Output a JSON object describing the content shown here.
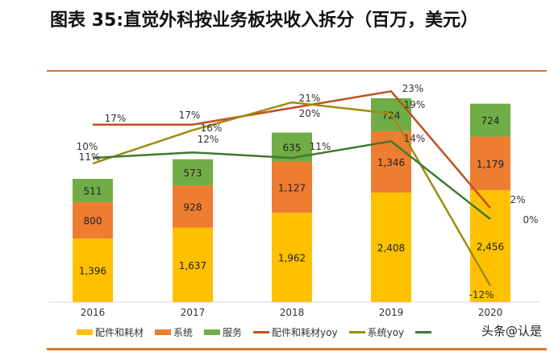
{
  "title": "图表 35:直觉外科按业务板块收入拆分（百万，美元）",
  "watermark": "头条@认是",
  "chart_data": {
    "type": "bar",
    "stacked": true,
    "categories": [
      "2016",
      "2017",
      "2018",
      "2019",
      "2020"
    ],
    "series": [
      {
        "name": "配件和耗材",
        "color": "#ffc000",
        "values": [
          1396,
          1637,
          1962,
          2408,
          2456
        ],
        "labels": [
          "1,396",
          "1,637",
          "1,962",
          "2,408",
          "2,456"
        ]
      },
      {
        "name": "系统",
        "color": "#ed7d31",
        "values": [
          800,
          928,
          1127,
          1346,
          1179
        ],
        "labels": [
          "800",
          "928",
          "1,127",
          "1,346",
          "1,179"
        ]
      },
      {
        "name": "服务",
        "color": "#70ad47",
        "values": [
          511,
          573,
          635,
          724,
          724
        ],
        "labels": [
          "511",
          "573",
          "635",
          "724",
          "724"
        ]
      }
    ],
    "line_series": [
      {
        "name": "配件和耗材yoy",
        "color": "#c0501e",
        "values": [
          17,
          17,
          20,
          23,
          2
        ],
        "labels": [
          "17%",
          "17%",
          "20%",
          "23%",
          "2%"
        ]
      },
      {
        "name": "系统yoy",
        "color": "#a08a10",
        "values": [
          10,
          16,
          21,
          19,
          -12
        ],
        "labels": [
          "10%",
          "16%",
          "21%",
          "19%",
          "-12%"
        ]
      },
      {
        "name": "",
        "color": "#3f7a2e",
        "values": [
          11,
          12,
          11,
          14,
          0
        ],
        "labels": [
          "11%",
          "12%",
          "11%",
          "14%",
          "0%"
        ]
      }
    ],
    "legend_position": "bottom",
    "grid": false
  }
}
